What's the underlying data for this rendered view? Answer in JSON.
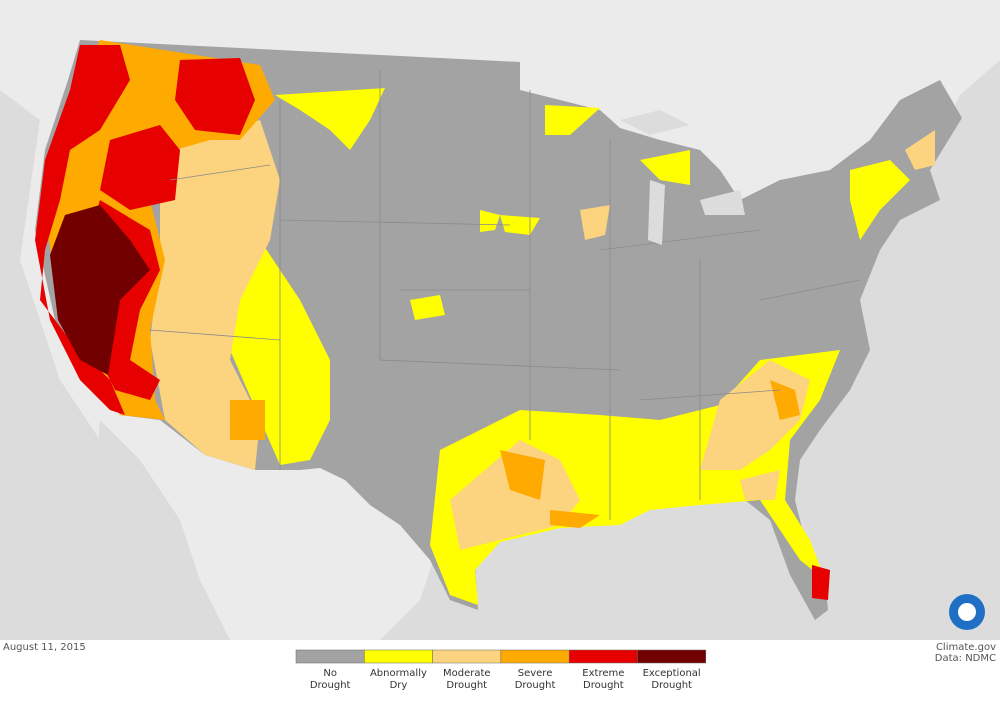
{
  "date": "August 11, 2015",
  "credit": "Climate.gov",
  "source": "Data: NDMC",
  "legend": {
    "items": [
      {
        "label": "No Drought",
        "color": "#a3a3a3"
      },
      {
        "label": "Abnormally Dry",
        "color": "#ffff00"
      },
      {
        "label": "Moderate Drought",
        "color": "#fcd37f"
      },
      {
        "label": "Severe Drought",
        "color": "#ffaa00"
      },
      {
        "label": "Extreme Drought",
        "color": "#e60000"
      },
      {
        "label": "Exceptional Drought",
        "color": "#730000"
      }
    ]
  }
}
